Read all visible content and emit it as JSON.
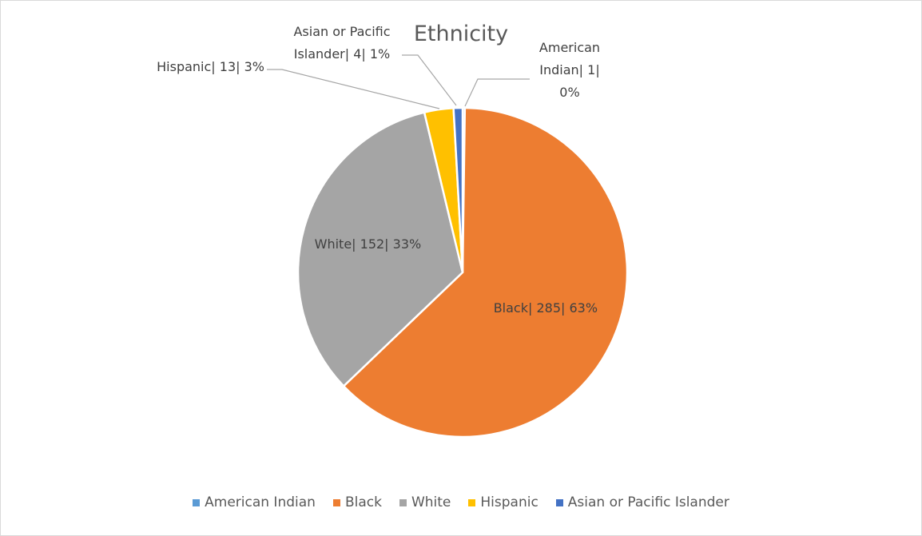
{
  "chart_data": {
    "type": "pie",
    "title": "Ethnicity",
    "categories": [
      "American Indian",
      "Black",
      "White",
      "Hispanic",
      "Asian or Pacific Islander"
    ],
    "values": [
      1,
      285,
      152,
      13,
      4
    ],
    "value_labels": [
      "American Indian| 1| 0%",
      "Black| 285| 63%",
      "White| 152| 33%",
      "Hispanic| 13| 3%",
      "Asian or Pacific Islander| 4| 1%"
    ],
    "colors": [
      "#5b9bd5",
      "#ed7d31",
      "#a5a5a5",
      "#ffc000",
      "#4472c4"
    ],
    "legend": "bottom"
  }
}
